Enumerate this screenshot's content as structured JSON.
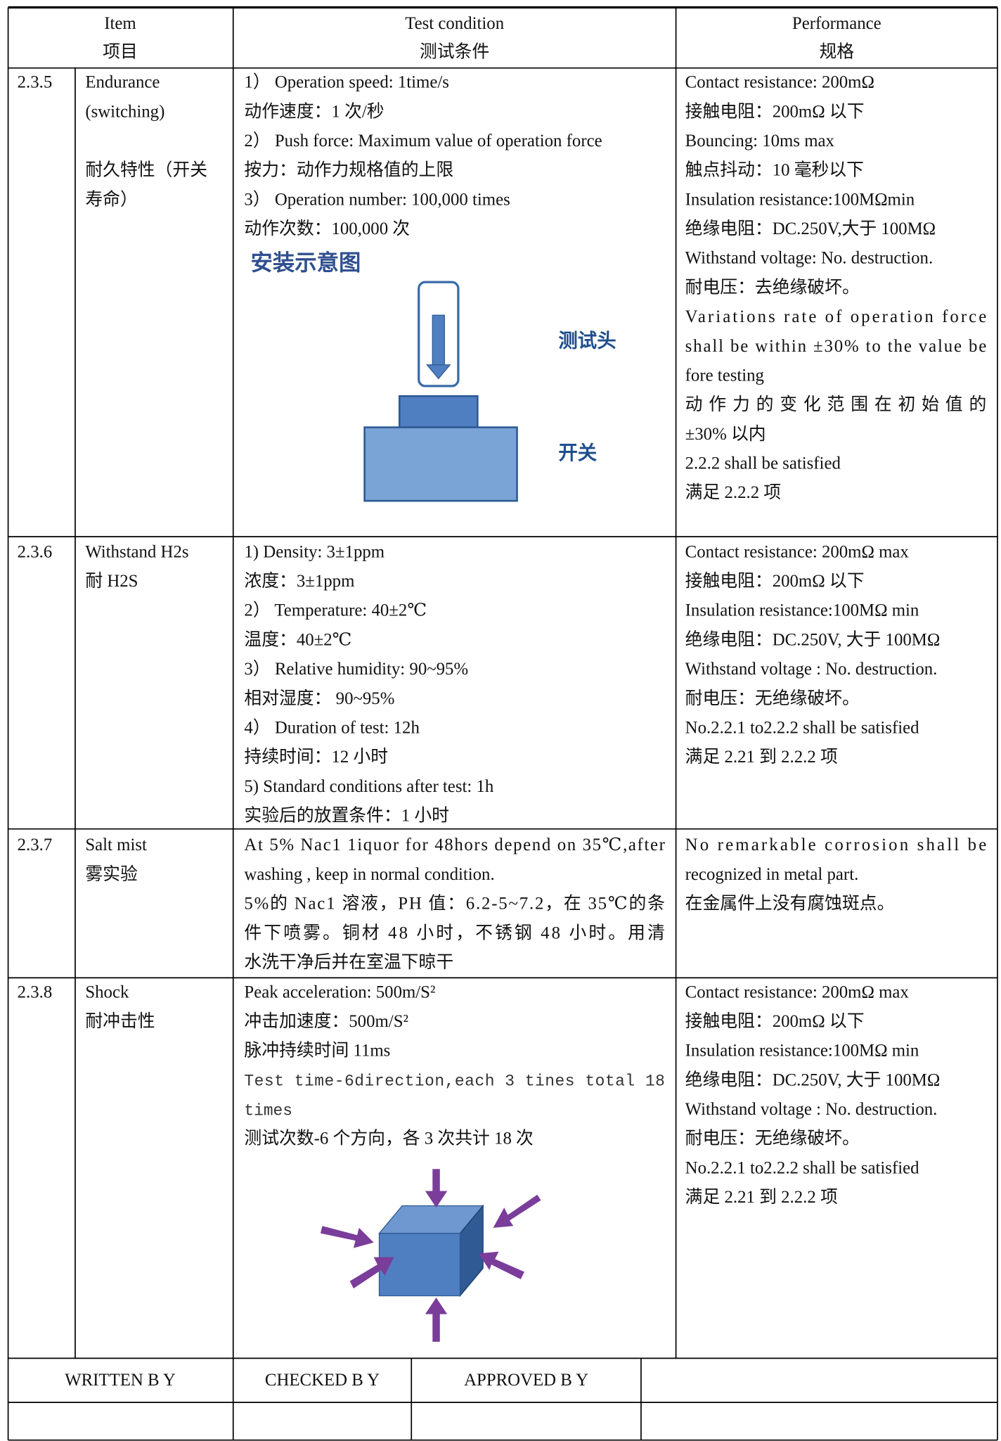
{
  "header": {
    "item": "Item",
    "item_cn": "项目",
    "test_condition": "Test condition",
    "test_condition_cn": "测试条件",
    "performance": "Performance",
    "performance_cn": "规格"
  },
  "rows": [
    {
      "no": "2.3.5",
      "item": [
        "Endurance",
        "(switching)",
        "耐久特性（开关",
        "寿命）"
      ],
      "condition": [
        "1） Operation speed: 1time/s",
        "动作速度：1 次/秒",
        "2） Push force: Maximum value of operation force",
        "按力：动作力规格值的上限",
        "3） Operation number: 100,000 times",
        "动作次数：100,000 次"
      ],
      "figure": {
        "title": "安装示意图",
        "head": "测试头",
        "switch": "开关"
      },
      "performance": [
        "Contact resistance: 200mΩ",
        "接触电阻：200mΩ 以下",
        "Bouncing: 10ms max",
        "触点抖动：10 毫秒以下",
        "Insulation resistance:100MΩmin",
        "绝缘电阻：DC.250V,大于 100MΩ",
        "Withstand voltage: No. destruction.",
        "耐电压：去绝缘破坏。",
        "Variations rate of operation force",
        "shall be within ±30% to the value be",
        "fore testing",
        "动作力的变化范围在初始值的",
        "±30% 以内",
        " 2.2.2 shall be satisfied",
        "满足 2.2.2 项"
      ]
    },
    {
      "no": "2.3.6",
      "item": [
        "Withstand H2s",
        "耐 H2S"
      ],
      "condition": [
        "1)  Density: 3±1ppm",
        " 浓度：3±1ppm",
        "2） Temperature: 40±2℃",
        " 温度：40±2℃",
        "3） Relative humidity: 90~95%",
        " 相对湿度：  90~95%",
        "4） Duration of test: 12h",
        " 持续时间：12 小时",
        "5) Standard conditions after test: 1h",
        "实验后的放置条件：1 小时"
      ],
      "performance": [
        "Contact resistance: 200mΩ max",
        "接触电阻：200mΩ 以下",
        "Insulation resistance:100MΩ min",
        "绝缘电阻：DC.250V, 大于 100MΩ",
        "Withstand voltage : No. destruction.",
        "耐电压：无绝缘破坏。",
        "No.2.2.1 to2.2.2 shall be satisfied",
        "满足 2.21 到 2.2.2 项"
      ]
    },
    {
      "no": "2.3.7",
      "item": [
        "Salt mist",
        "雾实验"
      ],
      "condition": [
        "At 5% Nac1 1iquor for 48hors depend on 35℃,after",
        "washing , keep in normal condition.",
        "5%的 Nac1 溶液，PH 值：6.2-5~7.2，在 35℃的条",
        "件下喷雾。铜材 48 小时，不锈钢 48 小时。用清",
        "水洗干净后并在室温下晾干"
      ],
      "performance": [
        "No remarkable corrosion shall be",
        "recognized in metal part.",
        "在金属件上没有腐蚀斑点。"
      ]
    },
    {
      "no": "2.3.8",
      "item": [
        "Shock",
        "耐冲击性"
      ],
      "condition": [
        "Peak acceleration: 500m/S²",
        "冲击加速度：500m/S²",
        "脉冲持续时间 11ms",
        "Test time-6direction,each 3 tines total 18",
        "times",
        "测试次数-6 个方向，各 3 次共计 18 次"
      ],
      "performance": [
        "Contact resistance: 200mΩ max",
        "接触电阻：200mΩ 以下",
        "Insulation resistance:100MΩ min",
        "绝缘电阻：DC.250V, 大于 100MΩ",
        "Withstand voltage : No. destruction.",
        "耐电压：无绝缘破坏。",
        "No.2.2.1 to2.2.2 shall be satisfied",
        "满足 2.21 到 2.2.2 项"
      ]
    }
  ],
  "footer": {
    "written_by": "WRITTEN B Y",
    "checked_by": "CHECKED B Y",
    "approved_by": "APPROVED B Y"
  }
}
